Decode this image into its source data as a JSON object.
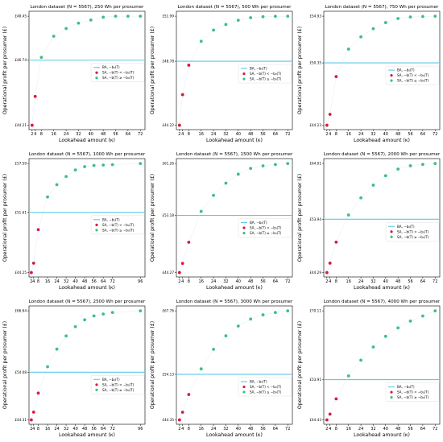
{
  "colors": {
    "ba_line": "#5bc8e8",
    "sa_below": "#d81b3c",
    "sa_above": "#3dbf85",
    "connector": "#c6dcef",
    "axis": "#000000"
  },
  "legend": {
    "ba": "BA, −b₀(T)",
    "sa_below": "SA, −b(T) < −b₀(T)",
    "sa_above": "SA, −b(T) ≥ −b₀(T)"
  },
  "chart_data": [
    {
      "type": "scatter",
      "title": "London dataset (N = 5567), 250 Wh per prosumer",
      "xlabel": "Lookahead amount (κ)",
      "ylabel": "Operational profit per prosumer (£)",
      "xticks": [
        2,
        4,
        8,
        16,
        24,
        32,
        40,
        48,
        56,
        64,
        72
      ],
      "xlim": [
        0,
        75
      ],
      "yticks": [
        "£44.21",
        "£46.74",
        "£48.45"
      ],
      "ytick_values": [
        44.21,
        46.74,
        48.45
      ],
      "baseline": 46.74,
      "x": [
        2,
        4,
        8,
        16,
        24,
        32,
        40,
        48,
        56,
        64,
        72
      ],
      "y": [
        44.21,
        45.33,
        46.85,
        47.67,
        47.97,
        48.18,
        48.3,
        48.41,
        48.45,
        48.45,
        48.45
      ]
    },
    {
      "type": "scatter",
      "title": "London dataset (N = 5567), 500 Wh per prosumer",
      "xlabel": "Lookahead amount (κ)",
      "ylabel": "Operational profit per prosumer (£)",
      "xticks": [
        2,
        4,
        8,
        16,
        24,
        32,
        40,
        48,
        56,
        64,
        72
      ],
      "xlim": [
        0,
        75
      ],
      "yticks": [
        "£44.22",
        "£48.78",
        "£51.99"
      ],
      "ytick_values": [
        44.22,
        48.78,
        51.99
      ],
      "baseline": 48.78,
      "x": [
        2,
        4,
        8,
        16,
        24,
        32,
        40,
        48,
        56,
        64,
        72
      ],
      "y": [
        44.22,
        46.4,
        48.5,
        50.2,
        51.0,
        51.4,
        51.7,
        51.88,
        51.95,
        51.98,
        51.99
      ]
    },
    {
      "type": "scatter",
      "title": "London dataset (N = 5567), 750 Wh per prosumer",
      "xlabel": "Lookahead amount (κ)",
      "ylabel": "Operational profit per prosumer (£)",
      "xticks": [
        2,
        4,
        8,
        16,
        24,
        32,
        40,
        48,
        56,
        64,
        72
      ],
      "xlim": [
        0,
        75
      ],
      "yticks": [
        "£44.23",
        "£50.35",
        "£54.93"
      ],
      "ytick_values": [
        44.23,
        50.35,
        54.93
      ],
      "baseline": 50.35,
      "x": [
        2,
        4,
        8,
        16,
        24,
        32,
        40,
        48,
        56,
        64,
        72
      ],
      "y": [
        44.23,
        45.3,
        49.0,
        51.7,
        52.9,
        53.7,
        54.3,
        54.7,
        54.85,
        54.9,
        54.93
      ]
    },
    {
      "type": "scatter",
      "title": "London dataset (N = 5567), 1000 Wh per prosumer",
      "xlabel": "Lookahead amount (κ)",
      "ylabel": "Operational profit per prosumer (£)",
      "xticks": [
        2,
        4,
        8,
        16,
        24,
        32,
        40,
        48,
        56,
        64,
        72,
        96
      ],
      "xlim": [
        0,
        100
      ],
      "yticks": [
        "£44.25",
        "£51.61",
        "£57.59"
      ],
      "ytick_values": [
        44.25,
        51.61,
        57.59
      ],
      "baseline": 51.61,
      "x": [
        2,
        4,
        8,
        16,
        24,
        32,
        40,
        48,
        56,
        64,
        72,
        96
      ],
      "y": [
        44.25,
        45.4,
        49.5,
        53.5,
        55.0,
        56.0,
        56.8,
        57.2,
        57.35,
        57.4,
        57.45,
        57.59
      ]
    },
    {
      "type": "scatter",
      "title": "London dataset (N = 5567), 1500 Wh per prosumer",
      "xlabel": "Lookahead amount (κ)",
      "ylabel": "Operational profit per prosumer (£)",
      "xticks": [
        2,
        4,
        8,
        16,
        24,
        32,
        40,
        48,
        56,
        64,
        72
      ],
      "xlim": [
        0,
        75
      ],
      "yticks": [
        "£44.27",
        "£53.18",
        "£61.26"
      ],
      "ytick_values": [
        44.27,
        53.18,
        61.26
      ],
      "baseline": 53.18,
      "x": [
        2,
        4,
        8,
        16,
        24,
        32,
        40,
        48,
        56,
        64,
        72
      ],
      "y": [
        44.27,
        45.7,
        49.0,
        53.8,
        56.3,
        58.2,
        59.6,
        60.5,
        60.9,
        61.1,
        61.26
      ]
    },
    {
      "type": "scatter",
      "title": "London dataset (N = 5567), 2000 Wh per prosumer",
      "xlabel": "Lookahead amount (κ)",
      "ylabel": "Operational profit per prosumer (£)",
      "xticks": [
        2,
        4,
        8,
        16,
        24,
        32,
        40,
        48,
        56,
        64,
        72
      ],
      "xlim": [
        0,
        75
      ],
      "yticks": [
        "£44.29",
        "£53.94",
        "£64.01"
      ],
      "ytick_values": [
        44.29,
        53.94,
        64.01
      ],
      "baseline": 53.94,
      "x": [
        2,
        4,
        8,
        16,
        24,
        32,
        40,
        48,
        56,
        64,
        72
      ],
      "y": [
        44.29,
        46.0,
        49.8,
        54.7,
        57.8,
        60.1,
        61.8,
        63.0,
        63.6,
        63.85,
        64.01
      ]
    },
    {
      "type": "scatter",
      "title": "London dataset (N = 5567), 2500 Wh per prosumer",
      "xlabel": "Lookahead amount (κ)",
      "ylabel": "Operational profit per prosumer (£)",
      "xticks": [
        2,
        4,
        8,
        16,
        24,
        32,
        40,
        48,
        56,
        64,
        72,
        96
      ],
      "xlim": [
        0,
        100
      ],
      "yticks": [
        "£44.31",
        "£54.08",
        "£66.64"
      ],
      "ytick_values": [
        44.31,
        54.08,
        66.64
      ],
      "baseline": 54.08,
      "x": [
        2,
        4,
        8,
        16,
        24,
        32,
        40,
        48,
        56,
        64,
        72,
        96
      ],
      "y": [
        44.31,
        45.9,
        49.8,
        55.2,
        58.8,
        61.5,
        63.4,
        64.8,
        65.6,
        66.0,
        66.3,
        66.64
      ]
    },
    {
      "type": "scatter",
      "title": "London dataset (N = 5567), 3000 Wh per prosumer",
      "xlabel": "Lookahead amount (κ)",
      "ylabel": "Operational profit per prosumer (£)",
      "xticks": [
        2,
        4,
        8,
        16,
        24,
        32,
        40,
        48,
        56,
        64,
        72
      ],
      "xlim": [
        0,
        75
      ],
      "yticks": [
        "£44.35",
        "£54.13",
        "£67.76"
      ],
      "ytick_values": [
        44.35,
        54.13,
        67.76
      ],
      "baseline": 54.13,
      "x": [
        2,
        4,
        8,
        16,
        24,
        32,
        40,
        48,
        56,
        64,
        72
      ],
      "y": [
        44.35,
        46.0,
        49.8,
        55.3,
        59.5,
        62.4,
        64.5,
        66.0,
        66.9,
        67.4,
        67.76
      ]
    },
    {
      "type": "scatter",
      "title": "London dataset (N = 5567), 4000 Wh per prosumer",
      "xlabel": "Lookahead amount (κ)",
      "ylabel": "Operational profit per prosumer (£)",
      "xticks": [
        2,
        4,
        8,
        16,
        24,
        32,
        40,
        48,
        56,
        64,
        72
      ],
      "xlim": [
        0,
        75
      ],
      "yticks": [
        "£44.43",
        "£53.91",
        "£70.11"
      ],
      "ytick_values": [
        44.43,
        53.91,
        70.11
      ],
      "baseline": 53.91,
      "x": [
        2,
        4,
        8,
        16,
        24,
        32,
        40,
        48,
        56,
        64,
        72
      ],
      "y": [
        44.43,
        45.8,
        49.4,
        54.8,
        58.5,
        61.6,
        64.1,
        66.1,
        67.7,
        68.9,
        70.11
      ]
    }
  ]
}
